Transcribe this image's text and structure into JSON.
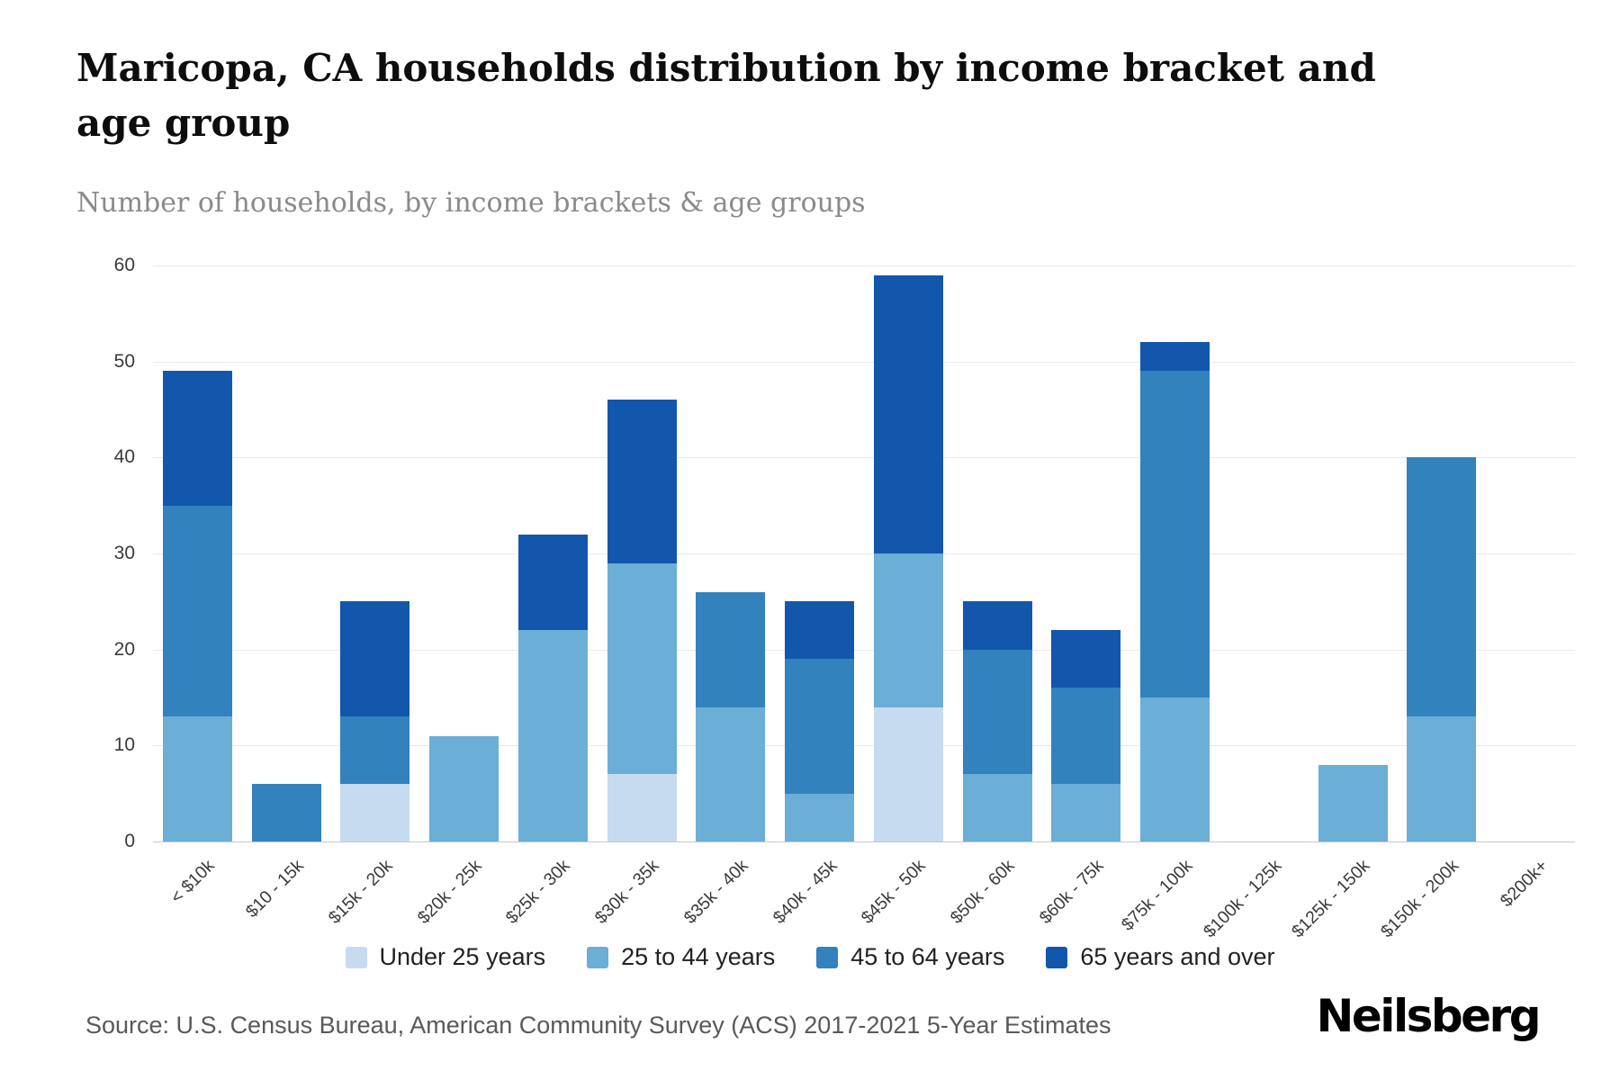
{
  "header": {
    "title": "Maricopa, CA households distribution by income bracket and age group",
    "subtitle": "Number of households, by income brackets & age groups"
  },
  "chart_data": {
    "type": "bar",
    "stacked": true,
    "title": "Maricopa, CA households distribution by income bracket and age group",
    "subtitle": "Number of households, by income brackets & age groups",
    "xlabel": "",
    "ylabel": "Number of households",
    "ylim": [
      0,
      60
    ],
    "yticks": [
      0,
      10,
      20,
      30,
      40,
      50,
      60
    ],
    "grid": "horizontal",
    "legend_position": "bottom",
    "categories": [
      "< $10k",
      "$10 - 15k",
      "$15k - 20k",
      "$20k - 25k",
      "$25k - 30k",
      "$30k - 35k",
      "$35k - 40k",
      "$40k - 45k",
      "$45k - 50k",
      "$50k - 60k",
      "$60k - 75k",
      "$75k - 100k",
      "$100k - 125k",
      "$125k - 150k",
      "$150k - 200k",
      "$200k+"
    ],
    "series": [
      {
        "name": "Under 25 years",
        "color": "#c6dbef",
        "values": [
          0,
          0,
          6,
          0,
          0,
          7,
          0,
          0,
          14,
          0,
          0,
          0,
          0,
          0,
          0,
          0
        ]
      },
      {
        "name": "25 to 44 years",
        "color": "#6baed6",
        "values": [
          13,
          0,
          0,
          11,
          22,
          22,
          14,
          5,
          16,
          7,
          6,
          15,
          0,
          8,
          13,
          0
        ]
      },
      {
        "name": "45 to 64 years",
        "color": "#3182bd",
        "values": [
          22,
          6,
          7,
          0,
          0,
          0,
          12,
          14,
          0,
          13,
          10,
          34,
          0,
          0,
          27,
          0
        ]
      },
      {
        "name": "65 years and over",
        "color": "#1257ab",
        "values": [
          14,
          0,
          12,
          0,
          10,
          17,
          0,
          6,
          29,
          5,
          6,
          3,
          0,
          0,
          0,
          0
        ]
      }
    ]
  },
  "footer": {
    "source": "Source: U.S. Census Bureau, American Community Survey (ACS) 2017-2021 5-Year Estimates",
    "brand": "Neilsberg"
  }
}
